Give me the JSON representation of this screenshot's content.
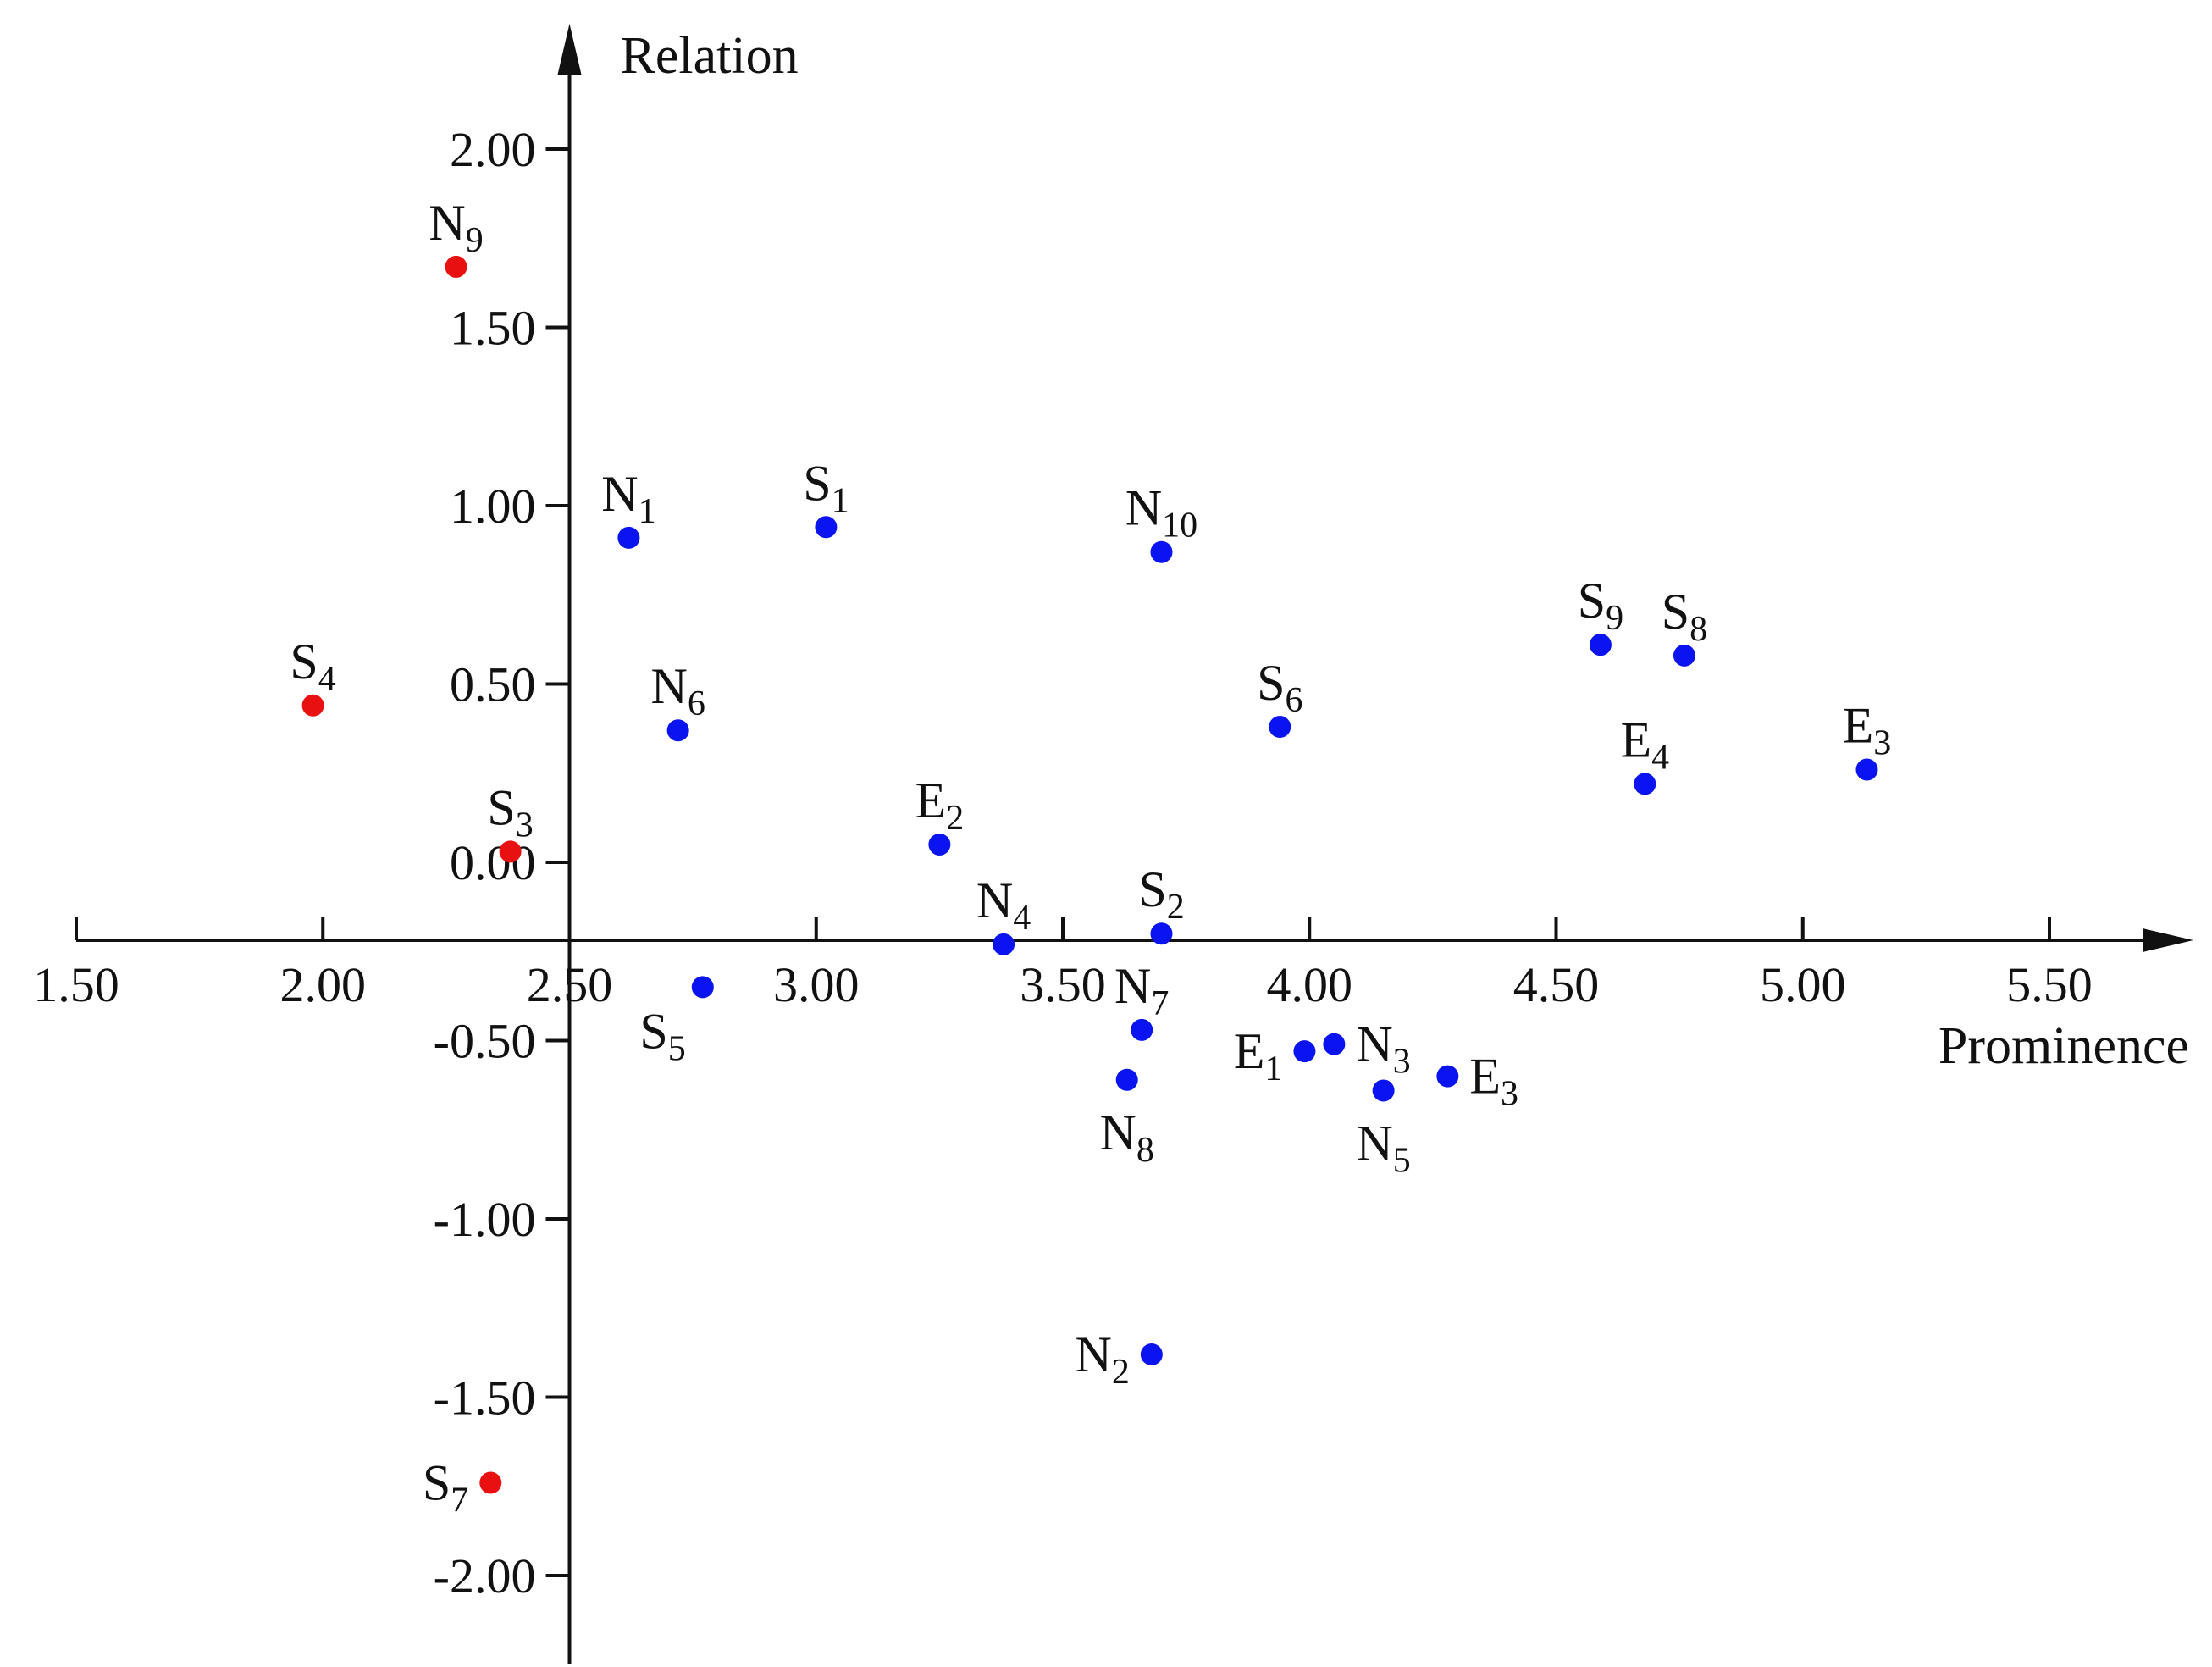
{
  "chart_data": {
    "type": "scatter",
    "title": "",
    "xlabel": "Prominence",
    "ylabel": "Relation",
    "xlim": [
      1.5,
      5.8
    ],
    "ylim": [
      -2.25,
      2.3
    ],
    "x_ticks": [
      "1.50",
      "2.00",
      "2.50",
      "3.00",
      "3.50",
      "4.00",
      "4.50",
      "5.00",
      "5.50"
    ],
    "y_ticks": [
      "-2.00",
      "-1.50",
      "-1.00",
      "-0.50",
      "0.00",
      "0.50",
      "1.00",
      "1.50",
      "2.00"
    ],
    "grid": false,
    "legend": "none",
    "colors": {
      "blue": "#0a14f0",
      "red": "#e81010",
      "axis": "#111111"
    },
    "points": [
      {
        "label": "N",
        "sub": "9",
        "x": 2.27,
        "y": 1.67,
        "color": "red",
        "lpos": "above"
      },
      {
        "label": "S",
        "sub": "4",
        "x": 1.98,
        "y": 0.44,
        "color": "red",
        "lpos": "above"
      },
      {
        "label": "S",
        "sub": "3",
        "x": 2.38,
        "y": 0.03,
        "color": "red",
        "lpos": "above"
      },
      {
        "label": "S",
        "sub": "7",
        "x": 2.34,
        "y": -1.74,
        "color": "red",
        "lpos": "left"
      },
      {
        "label": "N",
        "sub": "1",
        "x": 2.62,
        "y": 0.91,
        "color": "blue",
        "lpos": "above"
      },
      {
        "label": "S",
        "sub": "1",
        "x": 3.02,
        "y": 0.94,
        "color": "blue",
        "lpos": "above"
      },
      {
        "label": "N",
        "sub": "10",
        "x": 3.7,
        "y": 0.87,
        "color": "blue",
        "lpos": "above"
      },
      {
        "label": "N",
        "sub": "6",
        "x": 2.72,
        "y": 0.37,
        "color": "blue",
        "lpos": "above"
      },
      {
        "label": "S",
        "sub": "6",
        "x": 3.94,
        "y": 0.38,
        "color": "blue",
        "lpos": "above"
      },
      {
        "label": "S",
        "sub": "9",
        "x": 4.59,
        "y": 0.61,
        "color": "blue",
        "lpos": "above"
      },
      {
        "label": "S",
        "sub": "8",
        "x": 4.76,
        "y": 0.58,
        "color": "blue",
        "lpos": "above"
      },
      {
        "label": "E",
        "sub": "4",
        "x": 4.68,
        "y": 0.22,
        "color": "blue",
        "lpos": "above"
      },
      {
        "label": "E",
        "sub": "3",
        "x": 5.13,
        "y": 0.26,
        "color": "blue",
        "lpos": "above"
      },
      {
        "label": "E",
        "sub": "2",
        "x": 3.25,
        "y": 0.05,
        "color": "blue",
        "lpos": "above"
      },
      {
        "label": "N",
        "sub": "4",
        "x": 3.38,
        "y": -0.23,
        "color": "blue",
        "lpos": "above"
      },
      {
        "label": "S",
        "sub": "2",
        "x": 3.7,
        "y": -0.2,
        "color": "blue",
        "lpos": "above"
      },
      {
        "label": "S",
        "sub": "5",
        "x": 2.77,
        "y": -0.35,
        "color": "blue",
        "lpos": "below-left"
      },
      {
        "label": "N",
        "sub": "7",
        "x": 3.66,
        "y": -0.47,
        "color": "blue",
        "lpos": "above"
      },
      {
        "label": "N",
        "sub": "8",
        "x": 3.63,
        "y": -0.61,
        "color": "blue",
        "lpos": "below"
      },
      {
        "label": "E",
        "sub": "1",
        "x": 3.99,
        "y": -0.53,
        "color": "blue",
        "lpos": "left"
      },
      {
        "label": "N",
        "sub": "3",
        "x": 4.05,
        "y": -0.51,
        "color": "blue",
        "lpos": "right"
      },
      {
        "label": "N",
        "sub": "5",
        "x": 4.15,
        "y": -0.64,
        "color": "blue",
        "lpos": "below"
      },
      {
        "label": "E",
        "sub": "3",
        "x": 4.28,
        "y": -0.6,
        "color": "blue",
        "lpos": "right"
      },
      {
        "label": "N",
        "sub": "2",
        "x": 3.68,
        "y": -1.38,
        "color": "blue",
        "lpos": "left"
      }
    ]
  }
}
